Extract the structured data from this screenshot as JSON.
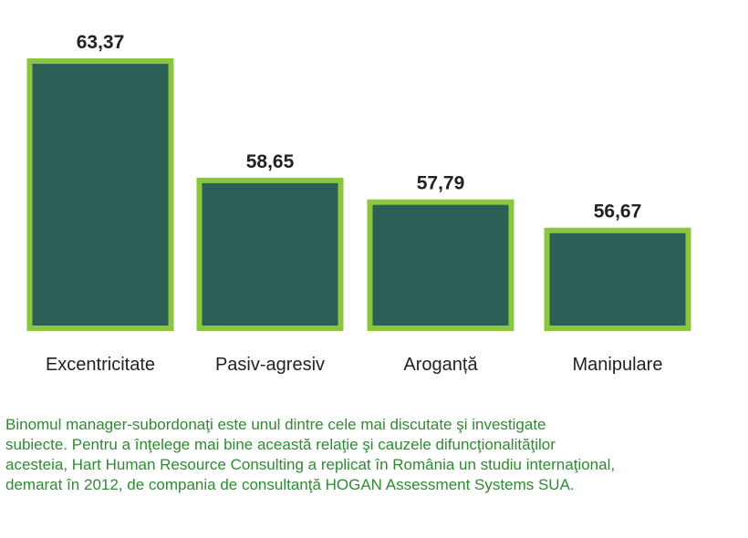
{
  "chart_data": {
    "type": "bar",
    "categories": [
      "Excentricitate",
      "Pasiv-agresiv",
      "Aroganță",
      "Manipulare"
    ],
    "values": [
      63.37,
      58.65,
      57.79,
      56.67
    ],
    "value_labels": [
      "63,37",
      "58,65",
      "57,79",
      "56,67"
    ],
    "title": "",
    "xlabel": "",
    "ylabel": "",
    "colors": {
      "bar_fill": "#2c5f55",
      "bar_border": "#8cc63f"
    }
  },
  "caption": {
    "lines": [
      "Binomul manager-subordonaţi este unul dintre cele mai discutate şi investigate",
      "subiecte. Pentru a înţelege mai bine această relaţie şi cauzele difuncţionalităţilor",
      "acesteia, Hart Human Resource Consulting a replicat în România un studiu internaţional,",
      "demarat în 2012, de compania de consultanţă HOGAN Assessment Systems SUA."
    ]
  }
}
